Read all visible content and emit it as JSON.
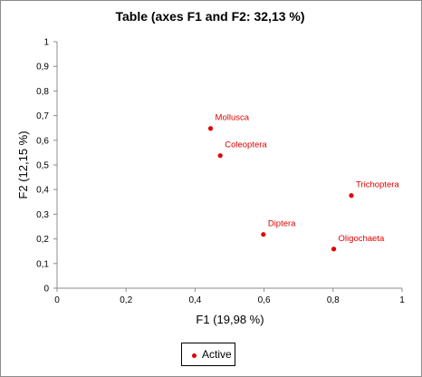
{
  "chart_data": {
    "type": "scatter",
    "title": "Table (axes F1 and F2: 32,13 %)",
    "xlabel": "F1 (19,98 %)",
    "ylabel": "F2 (12,15 %)",
    "xlim": [
      0,
      1
    ],
    "ylim": [
      0,
      1
    ],
    "x_ticks": [
      "0",
      "0,2",
      "0,4",
      "0,6",
      "0,8",
      "1"
    ],
    "y_ticks": [
      "0",
      "0,1",
      "0,2",
      "0,3",
      "0,4",
      "0,5",
      "0,6",
      "0,7",
      "0,8",
      "0,9",
      "1"
    ],
    "grid": false,
    "legend_position": "bottom",
    "series": [
      {
        "name": "Active",
        "color": "#e00000",
        "points": [
          {
            "label": "Mollusca",
            "x": 0.445,
            "y": 0.648
          },
          {
            "label": "Coleoptera",
            "x": 0.473,
            "y": 0.538
          },
          {
            "label": "Trichoptera",
            "x": 0.853,
            "y": 0.376
          },
          {
            "label": "Diptera",
            "x": 0.598,
            "y": 0.218
          },
          {
            "label": "Oligochaeta",
            "x": 0.802,
            "y": 0.159
          }
        ]
      }
    ]
  }
}
